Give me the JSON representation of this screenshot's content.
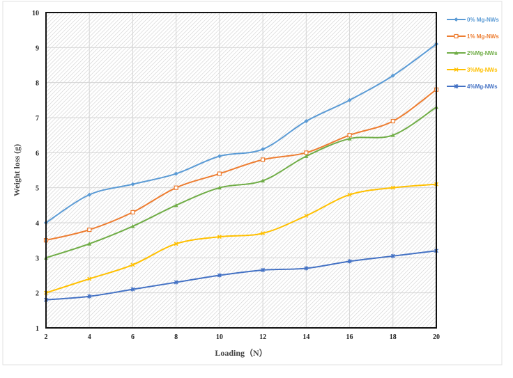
{
  "chart_data": {
    "type": "line",
    "x": [
      2,
      4,
      6,
      8,
      10,
      12,
      14,
      16,
      18,
      20
    ],
    "xlabel": "Loading（N）",
    "ylabel": "Weight loss (g)",
    "xlim": [
      2,
      20
    ],
    "ylim": [
      1,
      10
    ],
    "x_ticks": [
      "2",
      "4",
      "6",
      "8",
      "10",
      "12",
      "14",
      "16",
      "18",
      "20"
    ],
    "y_ticks": [
      "1",
      "2",
      "3",
      "4",
      "5",
      "6",
      "7",
      "8",
      "9",
      "10"
    ],
    "grid": true,
    "legend_position": "right",
    "background": "diagonal hatch",
    "series": [
      {
        "name": "0% Mg-NWs",
        "color": "#5B9BD5",
        "marker": "diamond",
        "values": [
          4.0,
          4.8,
          5.1,
          5.4,
          5.9,
          6.1,
          6.9,
          7.5,
          8.2,
          9.1
        ]
      },
      {
        "name": "1% Mg-NWs",
        "color": "#ED7D31",
        "marker": "square",
        "values": [
          3.5,
          3.8,
          4.3,
          5.0,
          5.4,
          5.8,
          6.0,
          6.5,
          6.9,
          7.8
        ]
      },
      {
        "name": "2%Mg-NWs",
        "color": "#70AD47",
        "marker": "triangle",
        "values": [
          3.0,
          3.4,
          3.9,
          4.5,
          5.0,
          5.2,
          5.9,
          6.4,
          6.5,
          7.3
        ]
      },
      {
        "name": "3%Mg-NWs",
        "color": "#FFC000",
        "marker": "x",
        "values": [
          2.0,
          2.4,
          2.8,
          3.4,
          3.6,
          3.7,
          4.2,
          4.8,
          5.0,
          5.1
        ]
      },
      {
        "name": "4%Mg-NWs",
        "color": "#4472C4",
        "marker": "asterisk",
        "values": [
          1.8,
          1.9,
          2.1,
          2.3,
          2.5,
          2.65,
          2.7,
          2.9,
          3.05,
          3.2
        ]
      }
    ]
  }
}
